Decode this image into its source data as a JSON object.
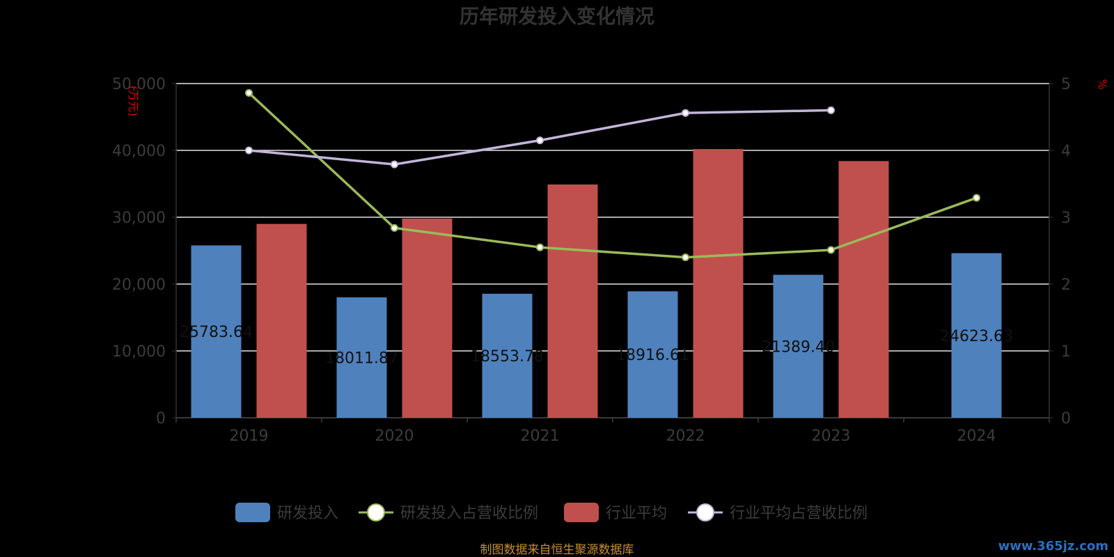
{
  "chart_data": {
    "type": "bar",
    "title": "历年研发投入变化情况",
    "categories": [
      "2019",
      "2020",
      "2021",
      "2022",
      "2023",
      "2024"
    ],
    "y_left": {
      "unit": "(万元)",
      "range": [
        0,
        50000
      ],
      "ticks": [
        "0",
        "10,000",
        "20,000",
        "30,000",
        "40,000",
        "50,000"
      ]
    },
    "y_right": {
      "unit": "%",
      "range": [
        0,
        5
      ],
      "ticks": [
        "0",
        "1",
        "2",
        "3",
        "4",
        "5"
      ]
    },
    "grid": true,
    "legend_position": "bottom",
    "series": [
      {
        "name": "研发投入",
        "type": "bar",
        "axis": "left",
        "color": "#4f81bd",
        "values": [
          25783.64,
          18011.87,
          18553.78,
          18916.61,
          21389.4,
          24623.63
        ],
        "labels": [
          "25783.64",
          "18011.87",
          "18553.78",
          "18916.61",
          "21389.40",
          "24623.63"
        ]
      },
      {
        "name": "研发投入占营收比例",
        "type": "line",
        "axis": "right",
        "color": "#9bbb59",
        "values": [
          4.86,
          2.84,
          2.55,
          2.4,
          2.51,
          3.29
        ]
      },
      {
        "name": "行业平均",
        "type": "bar",
        "axis": "left",
        "color": "#c0504d",
        "values": [
          29000,
          29800,
          34900,
          40200,
          38400,
          null
        ]
      },
      {
        "name": "行业平均占营收比例",
        "type": "line",
        "axis": "right",
        "color": "#c3b5da",
        "values": [
          4.0,
          3.79,
          4.15,
          4.56,
          4.6,
          null
        ]
      }
    ]
  },
  "footer": {
    "source": "制图数据来自恒生聚源数据库",
    "watermark": "www.365jz.com"
  }
}
